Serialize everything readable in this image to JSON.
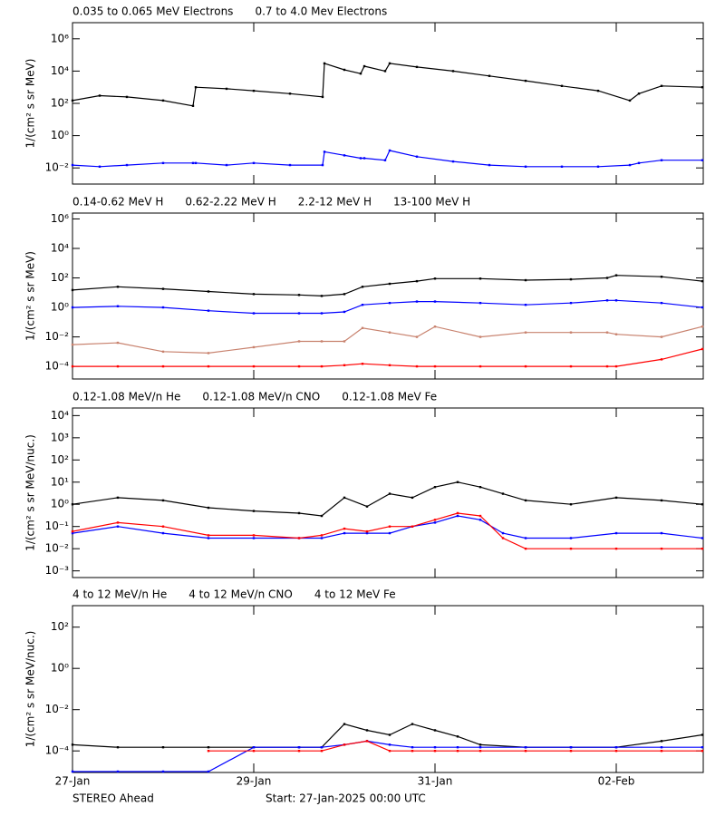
{
  "chart_data": [
    {
      "type": "scatter",
      "ylabel": "1/(cm² s sr MeV)",
      "log_y": true,
      "xlim": [
        0,
        6.96
      ],
      "xticks": [
        0,
        2,
        4,
        6
      ],
      "ylim": [
        0.001,
        10000000
      ],
      "yticks": [
        {
          "value": 0.01,
          "label": "10⁻²"
        },
        {
          "value": 1,
          "label": "10⁰"
        },
        {
          "value": 100,
          "label": "10²"
        },
        {
          "value": 10000,
          "label": "10⁴"
        },
        {
          "value": 1000000,
          "label": "10⁶"
        }
      ],
      "x": [
        0,
        0.3,
        0.6,
        1.0,
        1.33,
        1.36,
        1.7,
        2.0,
        2.4,
        2.76,
        2.78,
        3.0,
        3.18,
        3.22,
        3.45,
        3.5,
        3.8,
        4.2,
        4.6,
        5.0,
        5.4,
        5.8,
        6.15,
        6.25,
        6.5,
        6.95
      ],
      "series": [
        {
          "name": "0.035 to 0.065 MeV Electrons",
          "color": "#000000",
          "values": [
            150,
            300,
            250,
            150,
            70,
            1000,
            800,
            600,
            400,
            250,
            30000,
            12000,
            7000,
            20000,
            10000,
            30000,
            18000,
            10000,
            5000,
            2500,
            1200,
            600,
            150,
            400,
            1200,
            1000
          ]
        },
        {
          "name": "0.7 to 4.0 Mev Electrons",
          "color": "#0000ff",
          "values": [
            0.015,
            0.012,
            0.015,
            0.02,
            0.02,
            0.02,
            0.015,
            0.02,
            0.015,
            0.015,
            0.1,
            0.06,
            0.04,
            0.04,
            0.03,
            0.12,
            0.05,
            0.025,
            0.015,
            0.012,
            0.012,
            0.012,
            0.015,
            0.02,
            0.03,
            0.03
          ]
        }
      ]
    },
    {
      "type": "scatter",
      "ylabel": "1/(cm² s sr MeV)",
      "log_y": true,
      "xlim": [
        0,
        6.96
      ],
      "xticks": [
        0,
        2,
        4,
        6
      ],
      "ylim": [
        1.4e-05,
        2500000
      ],
      "yticks": [
        {
          "value": 0.0001,
          "label": "10⁻⁴"
        },
        {
          "value": 0.01,
          "label": "10⁻²"
        },
        {
          "value": 1,
          "label": "10⁰"
        },
        {
          "value": 100,
          "label": "10²"
        },
        {
          "value": 10000,
          "label": "10⁴"
        },
        {
          "value": 1000000,
          "label": "10⁶"
        }
      ],
      "x": [
        0,
        0.5,
        1.0,
        1.5,
        2.0,
        2.5,
        2.75,
        3.0,
        3.2,
        3.5,
        3.8,
        4.0,
        4.5,
        5.0,
        5.5,
        5.9,
        6.0,
        6.5,
        6.95
      ],
      "series": [
        {
          "name": "0.14-0.62 MeV H",
          "color": "#000000",
          "values": [
            15,
            25,
            18,
            12,
            8,
            7,
            6,
            8,
            25,
            40,
            60,
            90,
            90,
            70,
            80,
            100,
            150,
            120,
            60
          ]
        },
        {
          "name": "0.62-2.22 MeV H",
          "color": "#0000ff",
          "values": [
            1,
            1.2,
            1,
            0.6,
            0.4,
            0.4,
            0.4,
            0.5,
            1.5,
            2,
            2.5,
            2.5,
            2,
            1.5,
            2,
            3,
            3,
            2,
            1
          ]
        },
        {
          "name": "2.2-12 MeV H",
          "color": "#c8826e",
          "values": [
            0.003,
            0.004,
            0.001,
            0.0008,
            0.002,
            0.005,
            0.005,
            0.005,
            0.04,
            0.02,
            0.01,
            0.05,
            0.01,
            0.02,
            0.02,
            0.02,
            0.015,
            0.01,
            0.05
          ]
        },
        {
          "name": "13-100 MeV H",
          "color": "#ff0000",
          "values": [
            0.0001,
            0.0001,
            0.0001,
            0.0001,
            0.0001,
            0.0001,
            0.0001,
            0.00012,
            0.00015,
            0.00012,
            0.0001,
            0.0001,
            0.0001,
            0.0001,
            0.0001,
            0.0001,
            0.0001,
            0.0003,
            0.0015
          ]
        }
      ]
    },
    {
      "type": "scatter",
      "ylabel": "1/(cm² s sr MeV/nuc.)",
      "log_y": true,
      "xlim": [
        0,
        6.96
      ],
      "xticks": [
        0,
        2,
        4,
        6
      ],
      "ylim": [
        0.0005,
        22000
      ],
      "yticks": [
        {
          "value": 0.001,
          "label": "10⁻³"
        },
        {
          "value": 0.01,
          "label": "10⁻²"
        },
        {
          "value": 0.1,
          "label": "10⁻¹"
        },
        {
          "value": 1,
          "label": "10⁰"
        },
        {
          "value": 10,
          "label": "10¹"
        },
        {
          "value": 100,
          "label": "10²"
        },
        {
          "value": 1000,
          "label": "10³"
        },
        {
          "value": 10000,
          "label": "10⁴"
        }
      ],
      "x": [
        0,
        0.5,
        1.0,
        1.5,
        2.0,
        2.5,
        2.75,
        3.0,
        3.25,
        3.5,
        3.75,
        4.0,
        4.25,
        4.5,
        4.75,
        5.0,
        5.5,
        6.0,
        6.5,
        6.95
      ],
      "series": [
        {
          "name": "0.12-1.08 MeV/n He",
          "color": "#000000",
          "values": [
            1,
            2,
            1.5,
            0.7,
            0.5,
            0.4,
            0.3,
            2,
            0.8,
            3,
            2,
            6,
            10,
            6,
            3,
            1.5,
            1,
            2,
            1.5,
            1
          ]
        },
        {
          "name": "0.12-1.08 MeV/n CNO",
          "color": "#0000ff",
          "values": [
            0.05,
            0.1,
            0.05,
            0.03,
            0.03,
            0.03,
            0.03,
            0.05,
            0.05,
            0.05,
            0.1,
            0.15,
            0.3,
            0.2,
            0.05,
            0.03,
            0.03,
            0.05,
            0.05,
            0.03
          ]
        },
        {
          "name": "0.12-1.08 MeV Fe",
          "color": "#ff0000",
          "values": [
            0.06,
            0.15,
            0.1,
            0.04,
            0.04,
            0.03,
            0.04,
            0.08,
            0.06,
            0.1,
            0.1,
            0.2,
            0.4,
            0.3,
            0.03,
            0.01,
            0.01,
            0.01,
            0.01,
            0.01
          ]
        }
      ]
    },
    {
      "type": "scatter",
      "ylabel": "1/(cm² s sr MeV/nuc.)",
      "log_y": true,
      "xlim": [
        0,
        6.96
      ],
      "xticks": [
        {
          "value": 0,
          "label": "27-Jan"
        },
        {
          "value": 2,
          "label": "29-Jan"
        },
        {
          "value": 4,
          "label": "31-Jan"
        },
        {
          "value": 6,
          "label": "02-Feb"
        }
      ],
      "ylim": [
        9e-06,
        1100
      ],
      "yticks": [
        {
          "value": 0.0001,
          "label": "10⁻⁴"
        },
        {
          "value": 0.01,
          "label": "10⁻²"
        },
        {
          "value": 1,
          "label": "10⁰"
        },
        {
          "value": 100,
          "label": "10²"
        }
      ],
      "x": [
        0,
        0.5,
        1.0,
        1.5,
        2.0,
        2.5,
        2.75,
        3.0,
        3.25,
        3.5,
        3.75,
        4.0,
        4.25,
        4.5,
        5.0,
        5.5,
        6.0,
        6.5,
        6.95
      ],
      "series": [
        {
          "name": "4 to 12 MeV/n He",
          "color": "#000000",
          "values": [
            0.0002,
            0.00015,
            0.00015,
            0.00015,
            0.00015,
            0.00015,
            0.00015,
            0.002,
            0.001,
            0.0006,
            0.002,
            0.001,
            0.0005,
            0.0002,
            0.00015,
            0.00015,
            0.00015,
            0.0003,
            0.0006
          ]
        },
        {
          "name": "4 to 12 MeV/n CNO",
          "color": "#0000ff",
          "values": [
            1e-05,
            1e-05,
            1e-05,
            1e-05,
            0.00015,
            0.00015,
            0.00015,
            0.0002,
            0.0003,
            0.0002,
            0.00015,
            0.00015,
            0.00015,
            0.00015,
            0.00015,
            0.00015,
            0.00015,
            0.00015,
            0.00015
          ]
        },
        {
          "name": "4 to 12 MeV Fe",
          "color": "#ff0000",
          "values": [
            null,
            null,
            null,
            0.0001,
            0.0001,
            0.0001,
            0.0001,
            0.0002,
            0.0003,
            0.0001,
            0.0001,
            0.0001,
            0.0001,
            0.0001,
            0.0001,
            0.0001,
            0.0001,
            0.0001,
            0.0001
          ]
        }
      ]
    }
  ],
  "footer": {
    "spacecraft": "STEREO Ahead",
    "start": "Start: 27-Jan-2025 00:00 UTC"
  }
}
